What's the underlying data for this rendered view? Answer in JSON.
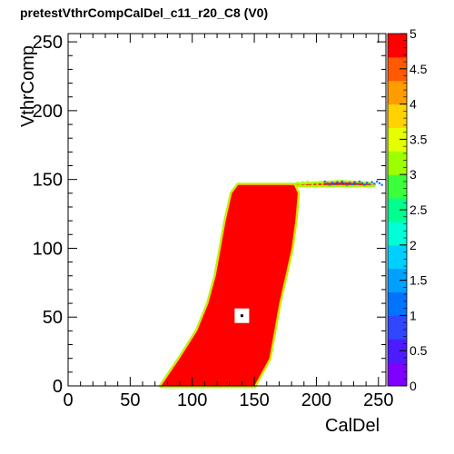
{
  "chart_data": {
    "type": "heatmap",
    "title": "pretestVthrCompCalDel_c11_r20_C8 (V0)",
    "xlabel": "CalDel",
    "ylabel": "VthrComp",
    "xlim": [
      0,
      256
    ],
    "ylim": [
      0,
      256
    ],
    "x_ticks": [
      "0",
      "50",
      "100",
      "150",
      "200",
      "250"
    ],
    "y_ticks": [
      "0",
      "50",
      "100",
      "150",
      "200",
      "250"
    ],
    "z_range": [
      0,
      5
    ],
    "z_ticks": [
      "0",
      "0.5",
      "1",
      "1.5",
      "2",
      "2.5",
      "3",
      "3.5",
      "4",
      "4.5",
      "5"
    ],
    "palette": [
      "#8000ff",
      "#4b1cff",
      "#2f47ff",
      "#0074ff",
      "#00a0ff",
      "#00d0ff",
      "#00ffd8",
      "#00ff8e",
      "#3bff3b",
      "#9eff00",
      "#e5ff00",
      "#ffd200",
      "#ff9c00",
      "#ff5a00",
      "#ff0000"
    ],
    "region": {
      "value": 5,
      "edge_value": 3,
      "left_boundary": [
        [
          0,
          75
        ],
        [
          20,
          90
        ],
        [
          40,
          104
        ],
        [
          60,
          113
        ],
        [
          80,
          119
        ],
        [
          100,
          123
        ],
        [
          120,
          127
        ],
        [
          140,
          132
        ],
        [
          146,
          137
        ]
      ],
      "right_boundary": [
        [
          0,
          150
        ],
        [
          20,
          162
        ],
        [
          40,
          166
        ],
        [
          60,
          170
        ],
        [
          80,
          175
        ],
        [
          100,
          180
        ],
        [
          120,
          183
        ],
        [
          140,
          185
        ],
        [
          146,
          182
        ]
      ],
      "top_tail": [
        [
          146,
          182
        ],
        [
          147,
          200
        ],
        [
          148,
          220
        ],
        [
          147,
          240
        ],
        [
          146,
          246
        ]
      ]
    },
    "hole": {
      "x": 140,
      "y": 51
    }
  }
}
